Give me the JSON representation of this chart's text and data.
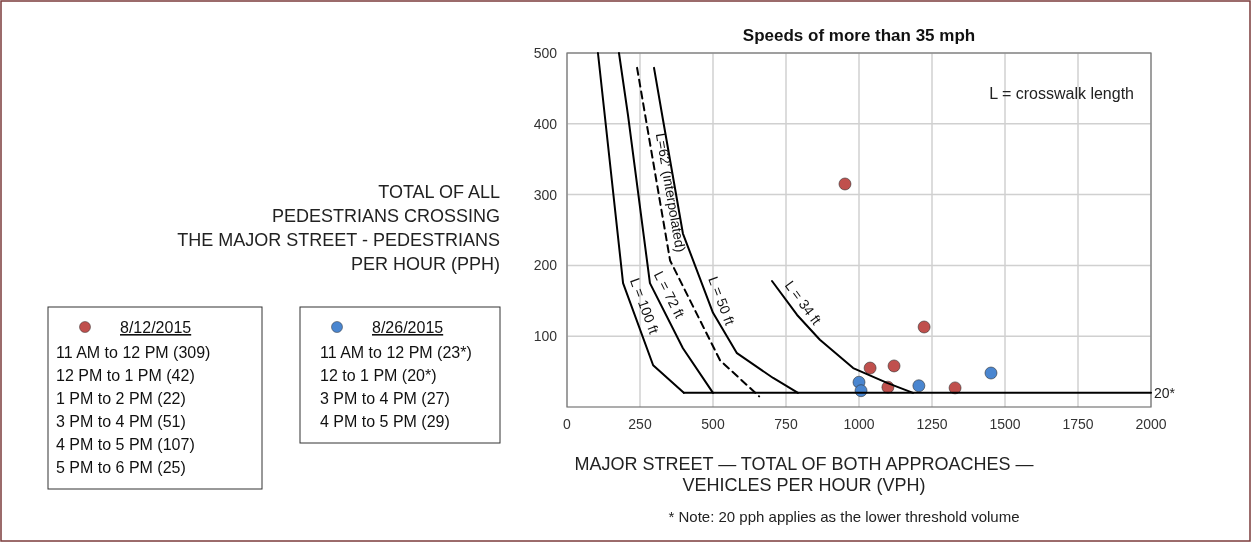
{
  "chart_data": {
    "type": "scatter",
    "title": "Speeds of more than 35 mph",
    "xlabel": "MAJOR STREET — TOTAL OF BOTH APPROACHES —\nVEHICLES PER HOUR (VPH)",
    "ylabel": "TOTAL OF ALL\nPEDESTRIANS CROSSING\nTHE MAJOR STREET - PEDESTRIANS\nPER HOUR (PPH)",
    "xlim": [
      0,
      2000
    ],
    "xticks": [
      0,
      250,
      500,
      750,
      1000,
      1250,
      1500,
      1750,
      2000
    ],
    "ylim": [
      0,
      500
    ],
    "yticks": [
      100,
      200,
      300,
      400,
      500
    ],
    "grid": true,
    "legend": "bottom left",
    "series": [
      {
        "name": "8/12/2015",
        "marker": "circle",
        "color": "#c0504d",
        "x": [
          952,
          1038,
          1120,
          1223,
          1099,
          1329
        ],
        "values": [
          315,
          55,
          58,
          113,
          28,
          27
        ]
      },
      {
        "name": "8/26/2015",
        "marker": "circle",
        "color": "#4a86d0",
        "x": [
          1000,
          1007,
          1205,
          1452
        ],
        "values": [
          35,
          23,
          30,
          48
        ]
      },
      {
        "type": "line",
        "color": "#000000",
        "x": [
          106,
          192,
          295,
          400
        ],
        "values": [
          500,
          175,
          59,
          20
        ]
      },
      {
        "type": "line",
        "color": "#000000",
        "x": [
          178,
          209,
          284,
          397,
          500
        ],
        "values": [
          500,
          412,
          175,
          83,
          20
        ]
      },
      {
        "type": "line",
        "color": "#000000",
        "line_style": "dashed",
        "x": [
          240,
          353,
          524,
          658
        ],
        "values": [
          479,
          207,
          66,
          15
        ]
      },
      {
        "type": "line",
        "color": "#000000",
        "x": [
          298,
          329,
          397,
          500,
          582,
          706,
          791
        ],
        "values": [
          479,
          405,
          245,
          133,
          76,
          41,
          20
        ]
      },
      {
        "type": "line",
        "color": "#000000",
        "x": [
          702,
          788,
          866,
          980,
          1096,
          1185
        ],
        "values": [
          178,
          130,
          95,
          55,
          34,
          20
        ]
      },
      {
        "type": "line",
        "color": "#000000",
        "x": [
          400,
          2000
        ],
        "values": [
          20,
          20
        ]
      }
    ],
    "annotations": [
      "11 AM to 12 PM (309)",
      "12 PM to 1 PM (42)",
      "1 PM to 2 PM (22)",
      "3 PM to 4 PM (51)",
      "4 PM to 5 PM (107)",
      "5 PM to 6 PM (25)",
      "11 AM to 12 PM (23*)",
      "12 to 1 PM (20*)",
      "3 PM to 4 PM (27)",
      "4 PM to 5 PM (29)",
      "L = crosswalk length",
      "* Note: 20 pph applies as the lower threshold volume",
      {
        "text": "L = 100 ft",
        "x": 226,
        "y": 137
      },
      {
        "text": "L = 72 ft",
        "x": 313,
        "y": 151
      },
      {
        "text": "L=62' (interpolated)",
        "x": 314,
        "y": 300
      },
      {
        "text": "L = 50 ft",
        "x": 490,
        "y": 144
      },
      {
        "text": "L = 34 ft",
        "x": 775,
        "y": 137
      },
      {
        "text": "20*",
        "x": 2000,
        "y": 20
      }
    ]
  }
}
